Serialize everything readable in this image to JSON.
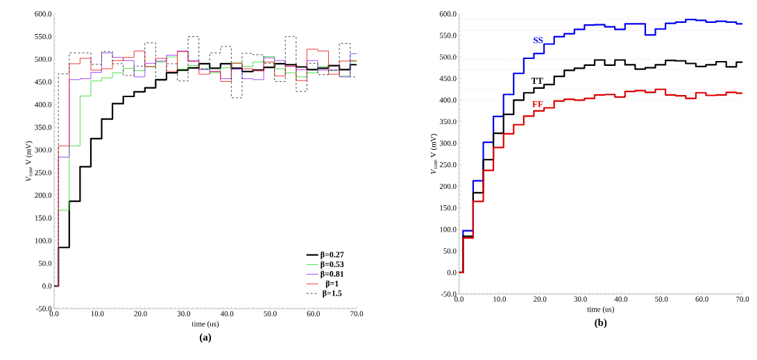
{
  "chart_data": [
    {
      "type": "step",
      "title": "(a)",
      "xlabel": "time (us)",
      "ylabel": "*V*$_{tune}$ V (mV)",
      "x": [
        0,
        1,
        3.5,
        6,
        8.5,
        11,
        13.5,
        16,
        18.5,
        21,
        23.5,
        26,
        28.5,
        31,
        33.5,
        36,
        38.5,
        41,
        43.5,
        46,
        48.5,
        51,
        53.5,
        56,
        58.5,
        61,
        63.5,
        66,
        68.5,
        70
      ],
      "xlim": [
        0,
        70
      ],
      "ylim": [
        -50,
        600
      ],
      "xticks": [
        {
          "value": 0,
          "label": "0.0"
        },
        {
          "value": 10,
          "label": "10.0"
        },
        {
          "value": 20,
          "label": "20.0"
        },
        {
          "value": 30,
          "label": "30.0"
        },
        {
          "value": 40,
          "label": "40.0"
        },
        {
          "value": 50,
          "label": "50.0"
        },
        {
          "value": 60,
          "label": "60.0"
        },
        {
          "value": 70,
          "label": "70.0"
        }
      ],
      "yticks": [
        {
          "value": -50,
          "label": "-50.0"
        },
        {
          "value": 0,
          "label": "0.0"
        },
        {
          "value": 50,
          "label": "50.0"
        },
        {
          "value": 100,
          "label": "100.0"
        },
        {
          "value": 150,
          "label": "150.0"
        },
        {
          "value": 200,
          "label": "200.0"
        },
        {
          "value": 250,
          "label": "250.0"
        },
        {
          "value": 300,
          "label": "300.0"
        },
        {
          "value": 350,
          "label": "350.0"
        },
        {
          "value": 400,
          "label": "400.0"
        },
        {
          "value": 450,
          "label": "450.0"
        },
        {
          "value": 500,
          "label": "500.0"
        },
        {
          "value": 550,
          "label": "550.0"
        },
        {
          "value": 600,
          "label": "600.0"
        }
      ],
      "legend": "bottom right",
      "series": [
        {
          "name": "β=0.27",
          "color": "#000000",
          "values": [
            0,
            85,
            187,
            263,
            325,
            368,
            402,
            418,
            428,
            437,
            455,
            470,
            476,
            481,
            490,
            480,
            490,
            480,
            473,
            476,
            482,
            490,
            488,
            483,
            477,
            480,
            486,
            477,
            488,
            488
          ]
        },
        {
          "name": "β=0.53",
          "color": "#33dd33",
          "values": [
            0,
            167,
            309,
            419,
            452,
            459,
            470,
            480,
            475,
            483,
            494,
            505,
            478,
            486,
            479,
            470,
            481,
            492,
            484,
            494,
            506,
            479,
            470,
            461,
            470,
            484,
            475,
            463,
            495,
            495
          ]
        },
        {
          "name": "β=0.81",
          "color": "#9933ff",
          "values": [
            0,
            284,
            455,
            457,
            471,
            514,
            504,
            497,
            461,
            491,
            496,
            509,
            518,
            497,
            477,
            473,
            457,
            478,
            457,
            455,
            503,
            497,
            484,
            477,
            497,
            476,
            476,
            461,
            512,
            512
          ]
        },
        {
          "name": "β=1",
          "color": "#ee2222",
          "values": [
            0,
            309,
            490,
            502,
            476,
            479,
            497,
            504,
            518,
            484,
            502,
            473,
            517,
            495,
            467,
            473,
            451,
            491,
            479,
            475,
            494,
            463,
            485,
            453,
            522,
            518,
            467,
            496,
            497,
            497
          ]
        },
        {
          "name": "β=1.5",
          "color": "#333333",
          "line_style": "dashed",
          "values": [
            0,
            468,
            514,
            514,
            489,
            517,
            490,
            464,
            485,
            536,
            453,
            490,
            452,
            550,
            479,
            514,
            528,
            415,
            513,
            510,
            491,
            451,
            550,
            429,
            491,
            466,
            476,
            535,
            461,
            461
          ]
        }
      ]
    },
    {
      "type": "step",
      "title": "(b)",
      "xlabel": "time (us)",
      "ylabel": "*V*$_{tune}$ V (mV)",
      "x": [
        0,
        1,
        3.5,
        6,
        8.5,
        11,
        13.5,
        16,
        18.5,
        21,
        23.5,
        26,
        28.5,
        31,
        33.5,
        36,
        38.5,
        41,
        43.5,
        46,
        48.5,
        51,
        53.5,
        56,
        58.5,
        61,
        63.5,
        66,
        68.5,
        70
      ],
      "xlim": [
        0,
        70
      ],
      "ylim": [
        -50,
        600
      ],
      "xticks": [
        {
          "value": 0,
          "label": "0.0"
        },
        {
          "value": 10,
          "label": "10.0"
        },
        {
          "value": 20,
          "label": "20.0"
        },
        {
          "value": 30,
          "label": "30.0"
        },
        {
          "value": 40,
          "label": "40.0"
        },
        {
          "value": 50,
          "label": "50.0"
        },
        {
          "value": 60,
          "label": "60.0"
        },
        {
          "value": 70,
          "label": "70.0"
        }
      ],
      "yticks": [
        {
          "value": -50,
          "label": "-50.0"
        },
        {
          "value": 0,
          "label": "0.0"
        },
        {
          "value": 50,
          "label": "50.0"
        },
        {
          "value": 100,
          "label": "100.0"
        },
        {
          "value": 150,
          "label": "150.0"
        },
        {
          "value": 200,
          "label": "200.0"
        },
        {
          "value": 250,
          "label": "250.0"
        },
        {
          "value": 300,
          "label": "300.0"
        },
        {
          "value": 350,
          "label": "350.0"
        },
        {
          "value": 400,
          "label": "400.0"
        },
        {
          "value": 450,
          "label": "450.0"
        },
        {
          "value": 500,
          "label": "500.0"
        },
        {
          "value": 550,
          "label": "550.0"
        },
        {
          "value": 600,
          "label": "600.0"
        }
      ],
      "ref_lines": [
        {
          "axis": "y",
          "value": 588,
          "color": "#0000ee",
          "line_style": "dotted"
        },
        {
          "axis": "y",
          "value": 562,
          "color": "#0000ee",
          "line_style": "dotted"
        },
        {
          "axis": "y",
          "value": 495,
          "color": "#000000",
          "line_style": "dotted"
        },
        {
          "axis": "y",
          "value": 470,
          "color": "#000000",
          "line_style": "dotted"
        },
        {
          "axis": "y",
          "value": 425,
          "color": "#dd0000",
          "line_style": "dotted"
        },
        {
          "axis": "y",
          "value": 401,
          "color": "#dd0000",
          "line_style": "dotted"
        }
      ],
      "series": [
        {
          "name": "SS",
          "color": "#0000ee",
          "values": [
            0,
            97,
            213,
            302,
            362,
            413,
            462,
            497,
            508,
            530,
            547,
            554,
            564,
            574,
            575,
            570,
            564,
            577,
            577,
            551,
            565,
            578,
            581,
            587,
            585,
            581,
            583,
            581,
            577,
            577
          ]
        },
        {
          "name": "TT",
          "color": "#000000",
          "values": [
            0,
            84,
            185,
            262,
            323,
            367,
            400,
            417,
            428,
            436,
            455,
            469,
            474,
            481,
            493,
            481,
            493,
            482,
            472,
            475,
            482,
            492,
            491,
            485,
            478,
            482,
            489,
            477,
            488,
            488
          ]
        },
        {
          "name": "FF",
          "color": "#dd0000",
          "values": [
            0,
            80,
            165,
            237,
            290,
            322,
            343,
            363,
            375,
            382,
            398,
            402,
            400,
            404,
            412,
            413,
            407,
            420,
            422,
            418,
            425,
            412,
            410,
            404,
            417,
            411,
            412,
            418,
            416,
            416
          ]
        }
      ]
    }
  ]
}
